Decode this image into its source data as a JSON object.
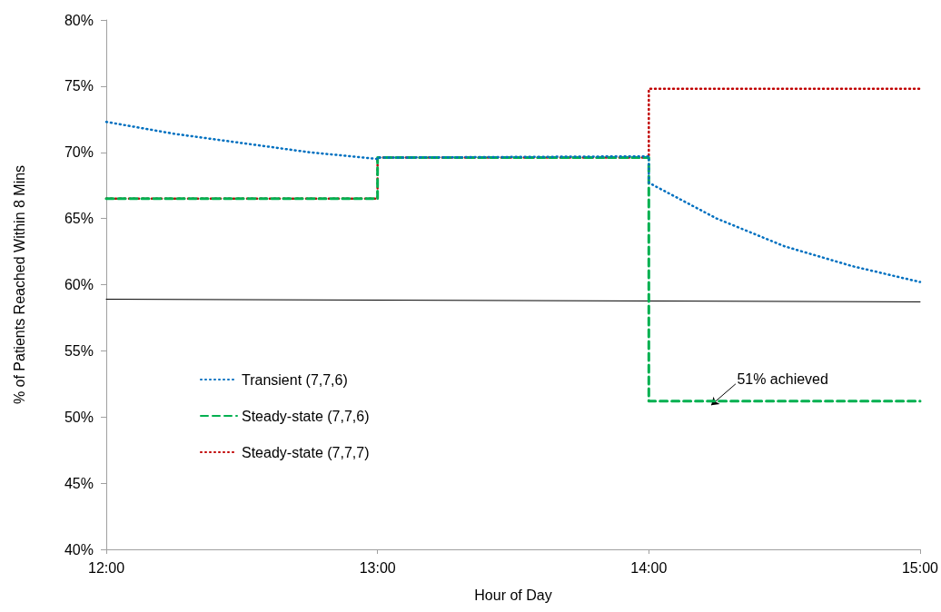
{
  "chart_data": {
    "type": "line",
    "xlabel": "Hour of Day",
    "ylabel": "% of Patients Reached Within 8 Mins",
    "xlim": [
      12,
      15
    ],
    "xticks": [
      {
        "value": 12,
        "label": "12:00"
      },
      {
        "value": 13,
        "label": "13:00"
      },
      {
        "value": 14,
        "label": "14:00"
      },
      {
        "value": 15,
        "label": "15:00"
      }
    ],
    "ylim": [
      40,
      80
    ],
    "yticks": [
      {
        "value": 40,
        "label": "40%"
      },
      {
        "value": 45,
        "label": "45%"
      },
      {
        "value": 50,
        "label": "50%"
      },
      {
        "value": 55,
        "label": "55%"
      },
      {
        "value": 60,
        "label": "60%"
      },
      {
        "value": 65,
        "label": "65%"
      },
      {
        "value": 70,
        "label": "70%"
      },
      {
        "value": 75,
        "label": "75%"
      },
      {
        "value": 80,
        "label": "80%"
      }
    ],
    "grid": false,
    "legend": "left",
    "marker": "none",
    "series": [
      {
        "name": "Transient (7,7,6)",
        "type": "line",
        "line_style": "dotted",
        "color": "#0070c0",
        "x": [
          12,
          12.25,
          12.5,
          12.75,
          13,
          13,
          14,
          14,
          14.25,
          14.5,
          14.75,
          15
        ],
        "values": [
          72.3,
          71.4,
          70.7,
          70.0,
          69.5,
          69.6,
          69.7,
          67.7,
          65.0,
          62.9,
          61.4,
          60.2
        ]
      },
      {
        "name": "Steady-state (7,7,6)",
        "type": "step",
        "line_style": "dashed",
        "color": "#00b050",
        "x": [
          12,
          13,
          14,
          15
        ],
        "values": [
          66.5,
          69.6,
          51.2,
          51.2
        ]
      },
      {
        "name": "Steady-state (7,7,7)",
        "type": "step",
        "line_style": "dotted",
        "color": "#c00000",
        "x": [
          12,
          13,
          14,
          15
        ],
        "values": [
          66.5,
          69.6,
          74.8,
          74.8
        ]
      },
      {
        "type": "line",
        "line_style": "solid",
        "color": "#000000",
        "x": [
          12,
          15
        ],
        "values": [
          58.9,
          58.7
        ]
      }
    ],
    "annotations": [
      {
        "text": "51% achieved",
        "x": 14.23,
        "y": 51.2
      }
    ]
  }
}
